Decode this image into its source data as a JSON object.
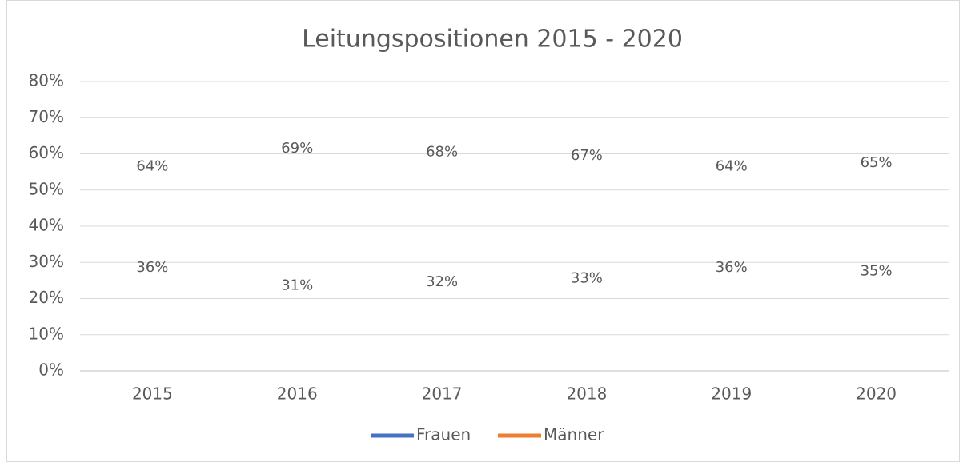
{
  "chart_data": {
    "type": "line",
    "title": "Leitungspositionen 2015 - 2020",
    "categories": [
      "2015",
      "2016",
      "2017",
      "2018",
      "2019",
      "2020"
    ],
    "series": [
      {
        "name": "Frauen",
        "color": "#4472c4",
        "values": [
          36,
          31,
          32,
          33,
          36,
          35
        ],
        "value_labels": [
          "36%",
          "31%",
          "32%",
          "33%",
          "36%",
          "35%"
        ]
      },
      {
        "name": "Männer",
        "color": "#ed7d31",
        "values": [
          64,
          69,
          68,
          67,
          64,
          65
        ],
        "value_labels": [
          "64%",
          "69%",
          "68%",
          "67%",
          "64%",
          "65%"
        ]
      }
    ],
    "ylim": [
      0,
      80
    ],
    "yticks": [
      {
        "value": 0,
        "label": "0%"
      },
      {
        "value": 10,
        "label": "10%"
      },
      {
        "value": 20,
        "label": "20%"
      },
      {
        "value": 30,
        "label": "30%"
      },
      {
        "value": 40,
        "label": "40%"
      },
      {
        "value": 50,
        "label": "50%"
      },
      {
        "value": 60,
        "label": "60%"
      },
      {
        "value": 70,
        "label": "70%"
      },
      {
        "value": 80,
        "label": "80%"
      }
    ],
    "grid": true,
    "legend": "bottom"
  }
}
